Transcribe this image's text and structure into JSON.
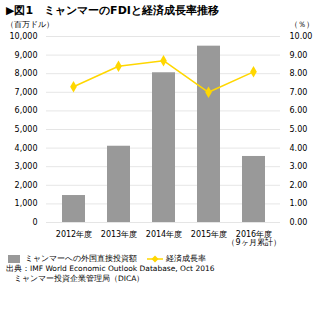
{
  "chart_data": {
    "type": "bar",
    "title": "▶図1　ミャンマーのFDIと経済成長率推移",
    "ylabel": "（百万ドル）",
    "y2label": "（％）",
    "categories": [
      "2012年度",
      "2013年度",
      "2014年度",
      "2015年度",
      "2016年度\n（9ヶ月累計）"
    ],
    "series": [
      {
        "name": "ミャンマーへの外国直接投資額",
        "type": "bar",
        "color": "#999999",
        "values": [
          1450,
          4100,
          8050,
          9480,
          3550
        ]
      },
      {
        "name": "経済成長率",
        "type": "line",
        "color": "#FFD700",
        "marker": "diamond",
        "axis": "y2",
        "values": [
          7.3,
          8.4,
          8.7,
          7.0,
          8.1
        ]
      }
    ],
    "ylim": [
      0,
      10000
    ],
    "yticks": [
      0,
      {
        "value": 1000,
        "label": "1,000"
      },
      {
        "value": 2000,
        "label": "2,000"
      },
      {
        "value": 3000,
        "label": "3,000"
      },
      {
        "value": 4000,
        "label": "4,000"
      },
      {
        "value": 5000,
        "label": "5,000"
      },
      {
        "value": 6000,
        "label": "6,000"
      },
      {
        "value": 7000,
        "label": "7,000"
      },
      {
        "value": 8000,
        "label": "8,000"
      },
      {
        "value": 9000,
        "label": "9,000"
      },
      {
        "value": 10000,
        "label": "10,000"
      }
    ],
    "y2lim": [
      0.0,
      10.0
    ],
    "y2ticks": [
      {
        "value": 0,
        "label": "0.00"
      },
      {
        "value": 1,
        "label": "1.00"
      },
      {
        "value": 2,
        "label": "2.00"
      },
      {
        "value": 3,
        "label": "3.00"
      },
      {
        "value": 4,
        "label": "4.00"
      },
      {
        "value": 5,
        "label": "5.00"
      },
      {
        "value": 6,
        "label": "6.00"
      },
      {
        "value": 7,
        "label": "7.00"
      },
      {
        "value": 8,
        "label": "8.00"
      },
      {
        "value": 9,
        "label": "9.00"
      },
      {
        "value": 10,
        "label": "10.00"
      }
    ],
    "grid": true,
    "legend": "bottom",
    "annotations": [
      "出典：IMF World Economic Outlook Database, Oct 2016",
      "　ミャンマー投資企業管理局（DICA）"
    ]
  }
}
